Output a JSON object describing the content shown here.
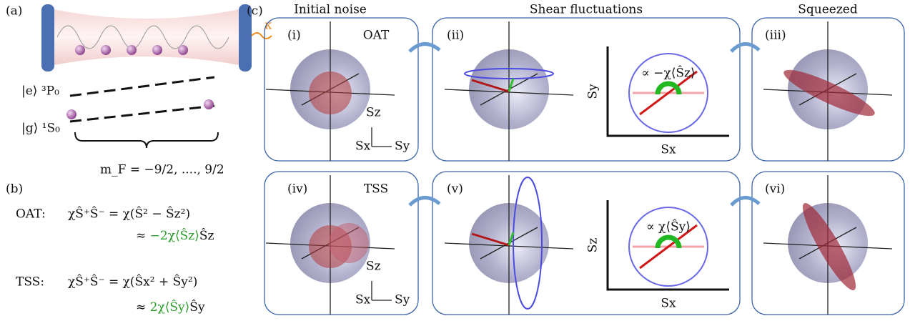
{
  "panel_a": {
    "label": "(a)",
    "kappa": "κ",
    "excited": "|e⟩ ³P₀",
    "ground": "|g⟩ ¹S₀",
    "mf": "m_F = −9/2, ...., 9/2"
  },
  "panel_b": {
    "label": "(b)",
    "oat": {
      "name": "OAT:",
      "line1": "χŜ⁺Ŝ⁻ = χ(Ŝ² − Ŝz²)",
      "approx": "≈",
      "green": "−2χ⟨Ŝz⟩",
      "tail": "Ŝz"
    },
    "tss": {
      "name": "TSS:",
      "line1": "χŜ⁺Ŝ⁻ = χ(Ŝx² + Ŝy²)",
      "approx": "≈",
      "green": "2χ⟨Ŝy⟩",
      "tail": "Ŝy"
    }
  },
  "panel_c": {
    "label": "(c)",
    "columns": [
      "Initial noise",
      "Shear fluctuations",
      "Squeezed"
    ],
    "rows": [
      {
        "scheme": "OAT",
        "panels": [
          "(i)",
          "(ii)",
          "(iii)"
        ],
        "shear": "∝ −χ⟨Ŝz⟩",
        "plot_y": "Sy",
        "plot_x": "Sx",
        "axes": [
          "Sz",
          "Sx",
          "Sy"
        ]
      },
      {
        "scheme": "TSS",
        "panels": [
          "(iv)",
          "(v)",
          "(vi)"
        ],
        "shear": "∝ χ⟨Ŝy⟩",
        "plot_y": "Sz",
        "plot_x": "Sx",
        "axes": [
          "Sz",
          "Sx",
          "Sy"
        ]
      }
    ]
  }
}
